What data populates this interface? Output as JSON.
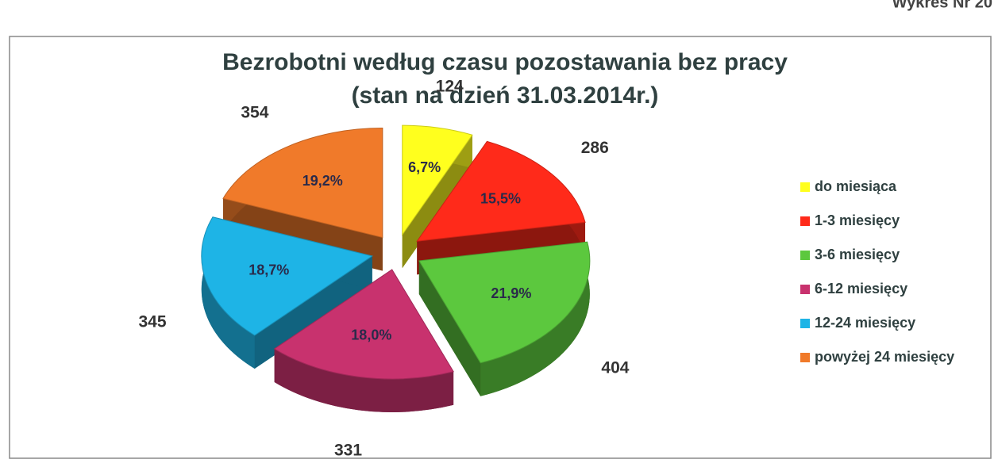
{
  "corner_text": "Wykres Nr 20",
  "chart_data": {
    "type": "pie3d",
    "title": "Bezrobotni według czasu pozostawania bez pracy",
    "subtitle": "(stan na dzień 31.03.2014r.)",
    "categories": [
      "do miesiąca",
      "1-3 miesięcy",
      "3-6 miesięcy",
      "6-12 miesięcy",
      "12-24 miesięcy",
      "powyżej 24 miesięcy"
    ],
    "values": [
      124,
      286,
      404,
      331,
      345,
      354
    ],
    "percents": [
      6.7,
      15.5,
      21.9,
      18.0,
      18.7,
      19.2
    ],
    "percent_labels": [
      "6,7%",
      "15,5%",
      "21,9%",
      "18,0%",
      "18,7%",
      "19,2%"
    ],
    "colors": [
      "#ffff1e",
      "#ff2a1a",
      "#5cc83e",
      "#c8326e",
      "#1eb4e6",
      "#f07a2a"
    ],
    "legend": "right"
  }
}
